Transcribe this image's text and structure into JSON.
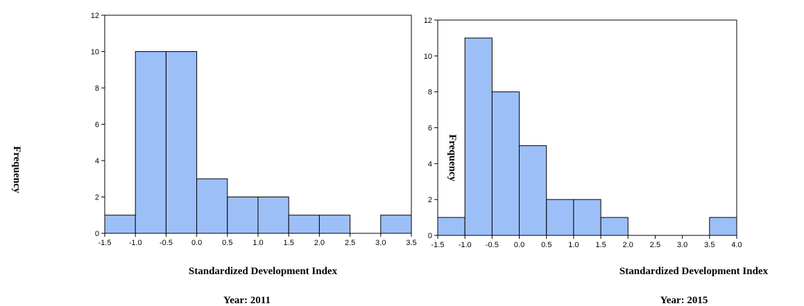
{
  "chart_data": [
    {
      "type": "bar",
      "ylabel": "Frequency",
      "xlabel": "Standardized Development Index",
      "caption": "Year: 2011",
      "xlim": [
        -1.5,
        3.5
      ],
      "ylim": [
        0,
        12
      ],
      "x_ticks": [
        "-1.5",
        "-1.0",
        "-0.5",
        "0.0",
        "0.5",
        "1.0",
        "1.5",
        "2.0",
        "2.5",
        "3.0",
        "3.5"
      ],
      "y_ticks": [
        "0",
        "2",
        "4",
        "6",
        "8",
        "10",
        "12"
      ],
      "bin_width": 0.5,
      "bins": [
        {
          "start": -1.5,
          "count": 1
        },
        {
          "start": -1.0,
          "count": 10
        },
        {
          "start": -0.5,
          "count": 10
        },
        {
          "start": 0.0,
          "count": 3
        },
        {
          "start": 0.5,
          "count": 2
        },
        {
          "start": 1.0,
          "count": 2
        },
        {
          "start": 1.5,
          "count": 1
        },
        {
          "start": 2.0,
          "count": 1
        },
        {
          "start": 2.5,
          "count": 0
        },
        {
          "start": 3.0,
          "count": 1
        }
      ]
    },
    {
      "type": "bar",
      "ylabel": "Frequency",
      "xlabel": "Standardized Development Index",
      "caption": "Year: 2015",
      "xlim": [
        -1.5,
        4.0
      ],
      "ylim": [
        0,
        12
      ],
      "x_ticks": [
        "-1.5",
        "-1.0",
        "-0.5",
        "0.0",
        "0.5",
        "1.0",
        "1.5",
        "2.0",
        "2.5",
        "3.0",
        "3.5",
        "4.0"
      ],
      "y_ticks": [
        "0",
        "2",
        "4",
        "6",
        "8",
        "10",
        "12"
      ],
      "bin_width": 0.5,
      "bins": [
        {
          "start": -1.5,
          "count": 1
        },
        {
          "start": -1.0,
          "count": 11
        },
        {
          "start": -0.5,
          "count": 8
        },
        {
          "start": 0.0,
          "count": 5
        },
        {
          "start": 0.5,
          "count": 2
        },
        {
          "start": 1.0,
          "count": 2
        },
        {
          "start": 1.5,
          "count": 1
        },
        {
          "start": 2.0,
          "count": 0
        },
        {
          "start": 2.5,
          "count": 0
        },
        {
          "start": 3.0,
          "count": 0
        },
        {
          "start": 3.5,
          "count": 1
        }
      ]
    }
  ]
}
